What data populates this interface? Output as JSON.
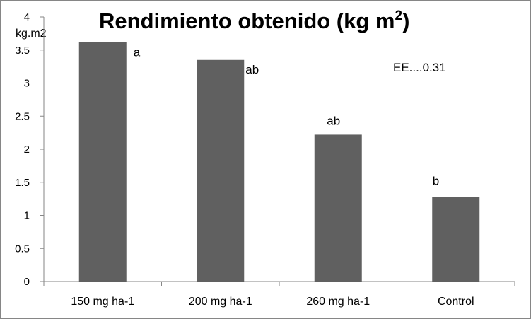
{
  "chart_data": {
    "type": "bar",
    "title": "Rendimiento obtenido (kg m",
    "title_superscript": "2",
    "title_close": ")",
    "ylabel": "kg.m2",
    "xlabel": "",
    "ylim": [
      0,
      4
    ],
    "yticks": [
      "0",
      "0.5",
      "1",
      "1.5",
      "2",
      "2.5",
      "3",
      "3.5",
      "4"
    ],
    "categories": [
      "150 mg ha-1",
      "200 mg ha-1",
      "260 mg ha-1",
      "Control"
    ],
    "values": [
      3.62,
      3.35,
      2.22,
      1.28
    ],
    "bar_labels": [
      "a",
      "ab",
      "ab",
      "b"
    ],
    "annotation": "EE....0.31",
    "bar_color": "#606060",
    "grid": false,
    "legend": "none"
  }
}
